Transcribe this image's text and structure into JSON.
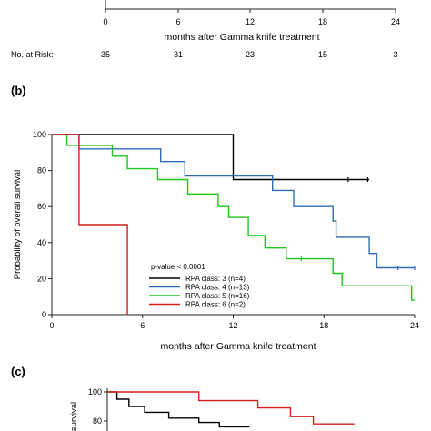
{
  "panel_a": {
    "xlabel": "months after Gamma knife treatment",
    "xticks": [
      "0",
      "6",
      "12",
      "18",
      "24"
    ],
    "risk_label": "No. at Risk:",
    "risk_values": [
      "35",
      "31",
      "23",
      "15",
      "3"
    ]
  },
  "panel_c": {
    "label": "(c)",
    "ylabel": "survival",
    "yticks": [
      "100",
      "80"
    ]
  },
  "chart_data": [
    {
      "type": "line",
      "panel": "(b)",
      "title": "",
      "xlabel": "months after Gamma knife treatment",
      "ylabel": "Probability of overall survival",
      "xlim": [
        0,
        24
      ],
      "ylim": [
        0,
        100
      ],
      "xticks": [
        0,
        6,
        12,
        18,
        24
      ],
      "yticks": [
        0,
        20,
        40,
        60,
        80,
        100
      ],
      "step": true,
      "grid": false,
      "legend_position": "bottom-center",
      "annotation": "p-value < 0.0001",
      "series": [
        {
          "name": "RPA class: 3 (n=4)",
          "color": "#000000",
          "x": [
            0,
            12,
            12,
            21
          ],
          "y": [
            100,
            100,
            75,
            75
          ],
          "censored": [
            [
              19.6,
              75
            ],
            [
              20.9,
              75
            ]
          ]
        },
        {
          "name": "RPA class: 4 (n=13)",
          "color": "#2e6db4",
          "x": [
            0,
            1.8,
            1.8,
            7.2,
            7.2,
            8.8,
            8.8,
            12.1,
            12.1,
            14.6,
            14.6,
            16,
            16,
            18.6,
            18.6,
            18.8,
            18.8,
            21,
            21,
            21.5,
            21.5,
            24
          ],
          "y": [
            100,
            100,
            92,
            92,
            85,
            85,
            77,
            77,
            77,
            77,
            69,
            69,
            60,
            60,
            52,
            52,
            43,
            43,
            34,
            34,
            26,
            26
          ],
          "censored": [
            [
              22.9,
              26
            ],
            [
              24,
              26
            ]
          ]
        },
        {
          "name": "RPA class: 5 (n=16)",
          "color": "#22c41d",
          "x": [
            0,
            1,
            1,
            4,
            4,
            5,
            5,
            6.6,
            6.6,
            7,
            7,
            9,
            9,
            11,
            11,
            11.7,
            11.7,
            13,
            13,
            14.1,
            14.1,
            15.5,
            15.5,
            18.6,
            18.6,
            19.2,
            19.2,
            23.8,
            23.8,
            24
          ],
          "y": [
            100,
            100,
            94,
            94,
            88,
            88,
            81,
            81,
            81,
            81,
            75,
            75,
            67,
            67,
            60,
            60,
            54,
            54,
            44,
            44,
            37,
            37,
            31,
            31,
            23,
            23,
            16,
            16,
            8,
            8
          ],
          "censored": [
            [
              16.5,
              31
            ]
          ]
        },
        {
          "name": "RPA class: 6 (n=2)",
          "color": "#d21f1f",
          "x": [
            0,
            1.8,
            1.8,
            5,
            5
          ],
          "y": [
            100,
            100,
            50,
            50,
            0
          ],
          "censored": []
        }
      ]
    },
    {
      "type": "line",
      "panel": "(c)",
      "title": "",
      "xlabel": "",
      "ylabel": "survival",
      "ylim": [
        70,
        100
      ],
      "yticks": [
        80,
        100
      ],
      "step": true,
      "series": [
        {
          "name": "",
          "color": "#000000",
          "x": [
            0,
            0.8,
            0.8,
            1.8,
            1.8,
            3.1,
            3.1,
            5.1,
            5.1,
            7.6,
            7.6,
            9.3,
            9.3,
            11.8
          ],
          "y": [
            100,
            100,
            95,
            95,
            90,
            90,
            86,
            86,
            82,
            82,
            79,
            79,
            76,
            76
          ]
        },
        {
          "name": "",
          "color": "#d21f1f",
          "x": [
            0,
            7.6,
            7.6,
            12.5,
            12.5,
            15.2,
            15.2,
            17.1,
            17.1,
            20.5
          ],
          "y": [
            100,
            100,
            94,
            94,
            89,
            89,
            83,
            83,
            78,
            78
          ]
        }
      ]
    }
  ]
}
